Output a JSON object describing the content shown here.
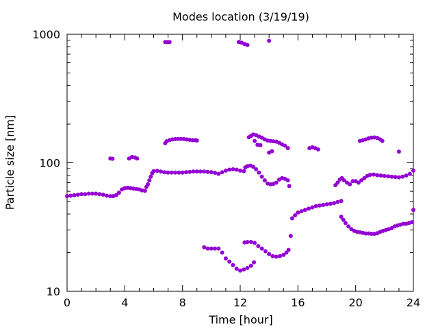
{
  "chart_data": {
    "type": "scatter",
    "title": "Modes location (3/19/19)",
    "xlabel": "Time [hour]",
    "ylabel": "Particle size [nm]",
    "xlim": [
      0,
      24
    ],
    "ylim": [
      10,
      1000
    ],
    "y_scale": "log",
    "x_ticks": [
      0,
      4,
      8,
      12,
      16,
      20,
      24
    ],
    "x_tick_labels": [
      "0",
      "4",
      "8",
      "12",
      "16",
      "20",
      "24"
    ],
    "y_ticks": [
      10,
      100,
      1000
    ],
    "y_tick_labels": [
      "10",
      "100",
      "1000"
    ],
    "grid": false,
    "legend": "none",
    "marker_color": "#9400D3",
    "series": [
      {
        "points": [
          [
            0.0,
            55.0
          ],
          [
            0.25,
            55.5
          ],
          [
            0.5,
            56.0
          ],
          [
            0.75,
            56.5
          ],
          [
            1.0,
            57.0
          ],
          [
            1.25,
            57.0
          ],
          [
            1.5,
            57.5
          ],
          [
            1.75,
            57.5
          ],
          [
            2.0,
            57.5
          ],
          [
            2.25,
            57.0
          ],
          [
            2.5,
            56.5
          ],
          [
            2.75,
            55.5
          ],
          [
            3.0,
            55.0
          ],
          [
            3.2,
            55.0
          ],
          [
            3.4,
            56.0
          ],
          [
            3.6,
            58.5
          ],
          [
            3.8,
            62.0
          ],
          [
            4.0,
            63.5
          ],
          [
            4.2,
            64.0
          ],
          [
            4.4,
            63.5
          ],
          [
            4.6,
            63.0
          ],
          [
            4.8,
            62.5
          ],
          [
            5.0,
            62.0
          ],
          [
            5.2,
            61.0
          ],
          [
            5.4,
            60.5
          ],
          [
            5.5,
            65.0
          ],
          [
            5.6,
            68.0
          ],
          [
            5.7,
            73.0
          ],
          [
            5.8,
            78.0
          ],
          [
            5.9,
            83.0
          ],
          [
            6.0,
            86.0
          ],
          [
            6.25,
            86.5
          ],
          [
            6.5,
            85.5
          ],
          [
            6.75,
            84.5
          ],
          [
            7.0,
            84.0
          ],
          [
            7.25,
            84.0
          ],
          [
            7.5,
            84.0
          ],
          [
            7.75,
            84.0
          ],
          [
            8.0,
            84.0
          ],
          [
            8.25,
            84.5
          ],
          [
            8.5,
            85.0
          ],
          [
            8.75,
            85.5
          ],
          [
            9.0,
            85.5
          ],
          [
            9.25,
            85.5
          ],
          [
            9.5,
            85.5
          ],
          [
            9.75,
            85.0
          ],
          [
            10.0,
            84.5
          ],
          [
            10.25,
            83.5
          ],
          [
            10.5,
            82.0
          ],
          [
            10.75,
            84.5
          ],
          [
            11.0,
            87.0
          ],
          [
            11.25,
            88.5
          ],
          [
            11.5,
            89.0
          ],
          [
            11.75,
            88.5
          ],
          [
            12.0,
            87.0
          ],
          [
            12.25,
            86.0
          ],
          [
            12.35,
            92.0
          ],
          [
            12.5,
            94.0
          ],
          [
            12.7,
            95.0
          ],
          [
            12.9,
            93.0
          ],
          [
            13.1,
            89.0
          ],
          [
            13.3,
            84.0
          ],
          [
            13.5,
            78.0
          ],
          [
            13.7,
            73.0
          ],
          [
            13.9,
            69.0
          ],
          [
            14.1,
            68.0
          ],
          [
            14.3,
            68.5
          ],
          [
            14.5,
            70.0
          ],
          [
            14.7,
            74.0
          ],
          [
            14.9,
            76.0
          ],
          [
            15.1,
            75.0
          ],
          [
            15.3,
            73.0
          ],
          [
            15.4,
            66.0
          ],
          [
            15.5,
            27.0
          ],
          [
            15.6,
            37.0
          ],
          [
            15.8,
            39.0
          ],
          [
            16.0,
            41.0
          ],
          [
            16.25,
            42.0
          ],
          [
            16.5,
            43.0
          ],
          [
            16.75,
            44.0
          ],
          [
            17.0,
            45.0
          ],
          [
            17.25,
            46.0
          ],
          [
            17.5,
            46.5
          ],
          [
            17.75,
            47.0
          ],
          [
            18.0,
            47.5
          ],
          [
            18.25,
            48.0
          ],
          [
            18.5,
            48.5
          ],
          [
            18.75,
            49.5
          ],
          [
            19.0,
            50.5
          ],
          [
            18.6,
            67.0
          ],
          [
            18.75,
            70.0
          ],
          [
            18.9,
            74.0
          ],
          [
            19.05,
            76.0
          ],
          [
            19.2,
            73.0
          ],
          [
            19.4,
            70.0
          ],
          [
            19.6,
            68.0
          ],
          [
            19.8,
            72.0
          ],
          [
            20.0,
            72.0
          ],
          [
            20.2,
            70.0
          ],
          [
            20.4,
            73.0
          ],
          [
            20.6,
            76.0
          ],
          [
            20.8,
            79.0
          ],
          [
            21.0,
            80.5
          ],
          [
            21.25,
            81.0
          ],
          [
            21.5,
            80.0
          ],
          [
            21.75,
            79.5
          ],
          [
            22.0,
            79.0
          ],
          [
            22.25,
            78.5
          ],
          [
            22.5,
            78.0
          ],
          [
            22.75,
            77.5
          ],
          [
            23.0,
            77.0
          ],
          [
            23.25,
            78.0
          ],
          [
            23.5,
            79.5
          ],
          [
            23.75,
            82.0
          ],
          [
            24.0,
            87.0
          ],
          [
            3.0,
            108.0
          ],
          [
            3.15,
            107.5
          ],
          [
            4.3,
            108.0
          ],
          [
            4.5,
            111.0
          ],
          [
            4.7,
            110.0
          ],
          [
            4.85,
            108.0
          ],
          [
            6.8,
            142.0
          ],
          [
            6.9,
            147.0
          ],
          [
            7.1,
            150.0
          ],
          [
            7.3,
            152.0
          ],
          [
            7.5,
            153.0
          ],
          [
            7.7,
            153.5
          ],
          [
            7.9,
            153.5
          ],
          [
            8.1,
            153.0
          ],
          [
            8.3,
            152.0
          ],
          [
            8.5,
            151.0
          ],
          [
            8.7,
            150.0
          ],
          [
            8.9,
            150.0
          ],
          [
            9.0,
            149.0
          ],
          [
            12.6,
            158.0
          ],
          [
            12.75,
            162.0
          ],
          [
            12.9,
            166.0
          ],
          [
            13.1,
            164.0
          ],
          [
            13.3,
            160.0
          ],
          [
            13.5,
            157.0
          ],
          [
            13.7,
            152.0
          ],
          [
            13.9,
            149.0
          ],
          [
            14.1,
            148.0
          ],
          [
            14.3,
            147.0
          ],
          [
            14.5,
            146.0
          ],
          [
            14.7,
            143.0
          ],
          [
            14.9,
            139.0
          ],
          [
            15.1,
            136.0
          ],
          [
            15.3,
            130.0
          ],
          [
            13.0,
            148.0
          ],
          [
            13.2,
            138.0
          ],
          [
            13.4,
            137.0
          ],
          [
            14.0,
            120.0
          ],
          [
            14.2,
            123.0
          ],
          [
            16.8,
            130.0
          ],
          [
            17.0,
            132.0
          ],
          [
            17.2,
            130.0
          ],
          [
            17.4,
            127.0
          ],
          [
            20.3,
            148.0
          ],
          [
            20.5,
            150.0
          ],
          [
            20.7,
            152.0
          ],
          [
            20.9,
            155.0
          ],
          [
            21.1,
            157.0
          ],
          [
            21.3,
            157.5
          ],
          [
            21.5,
            156.0
          ],
          [
            21.7,
            152.0
          ],
          [
            21.85,
            148.0
          ],
          [
            23.0,
            122.0
          ],
          [
            6.8,
            870.0
          ],
          [
            6.95,
            870.0
          ],
          [
            7.1,
            870.0
          ],
          [
            11.9,
            870.0
          ],
          [
            12.1,
            860.0
          ],
          [
            12.3,
            840.0
          ],
          [
            12.5,
            825.0
          ],
          [
            14.0,
            890.0
          ],
          [
            9.5,
            22.0
          ],
          [
            9.75,
            21.5
          ],
          [
            10.0,
            21.5
          ],
          [
            10.25,
            21.5
          ],
          [
            10.5,
            21.5
          ],
          [
            10.75,
            20.0
          ],
          [
            11.0,
            18.0
          ],
          [
            11.25,
            17.0
          ],
          [
            11.5,
            16.0
          ],
          [
            11.75,
            15.0
          ],
          [
            12.0,
            14.5
          ],
          [
            12.25,
            14.8
          ],
          [
            12.5,
            15.2
          ],
          [
            12.75,
            15.8
          ],
          [
            12.95,
            16.8
          ],
          [
            12.3,
            24.0
          ],
          [
            12.5,
            24.2
          ],
          [
            12.75,
            24.2
          ],
          [
            13.0,
            23.8
          ],
          [
            13.25,
            22.5
          ],
          [
            13.5,
            21.5
          ],
          [
            13.75,
            20.5
          ],
          [
            14.0,
            19.5
          ],
          [
            14.25,
            18.8
          ],
          [
            14.5,
            18.6
          ],
          [
            14.75,
            18.8
          ],
          [
            15.0,
            19.2
          ],
          [
            15.2,
            20.0
          ],
          [
            15.35,
            21.0
          ],
          [
            19.0,
            38.0
          ],
          [
            19.15,
            36.0
          ],
          [
            19.3,
            34.0
          ],
          [
            19.5,
            32.0
          ],
          [
            19.7,
            30.5
          ],
          [
            19.9,
            29.5
          ],
          [
            20.1,
            29.0
          ],
          [
            20.3,
            28.8
          ],
          [
            20.5,
            28.5
          ],
          [
            20.7,
            28.2
          ],
          [
            20.9,
            28.2
          ],
          [
            21.1,
            28.0
          ],
          [
            21.3,
            28.0
          ],
          [
            21.5,
            28.3
          ],
          [
            21.7,
            29.0
          ],
          [
            21.9,
            29.5
          ],
          [
            22.1,
            30.0
          ],
          [
            22.3,
            30.5
          ],
          [
            22.5,
            31.0
          ],
          [
            22.7,
            32.0
          ],
          [
            22.9,
            32.5
          ],
          [
            23.1,
            33.0
          ],
          [
            23.3,
            33.5
          ],
          [
            23.5,
            33.5
          ],
          [
            23.7,
            34.0
          ],
          [
            23.9,
            34.5
          ],
          [
            24.0,
            43.0
          ]
        ]
      }
    ]
  }
}
